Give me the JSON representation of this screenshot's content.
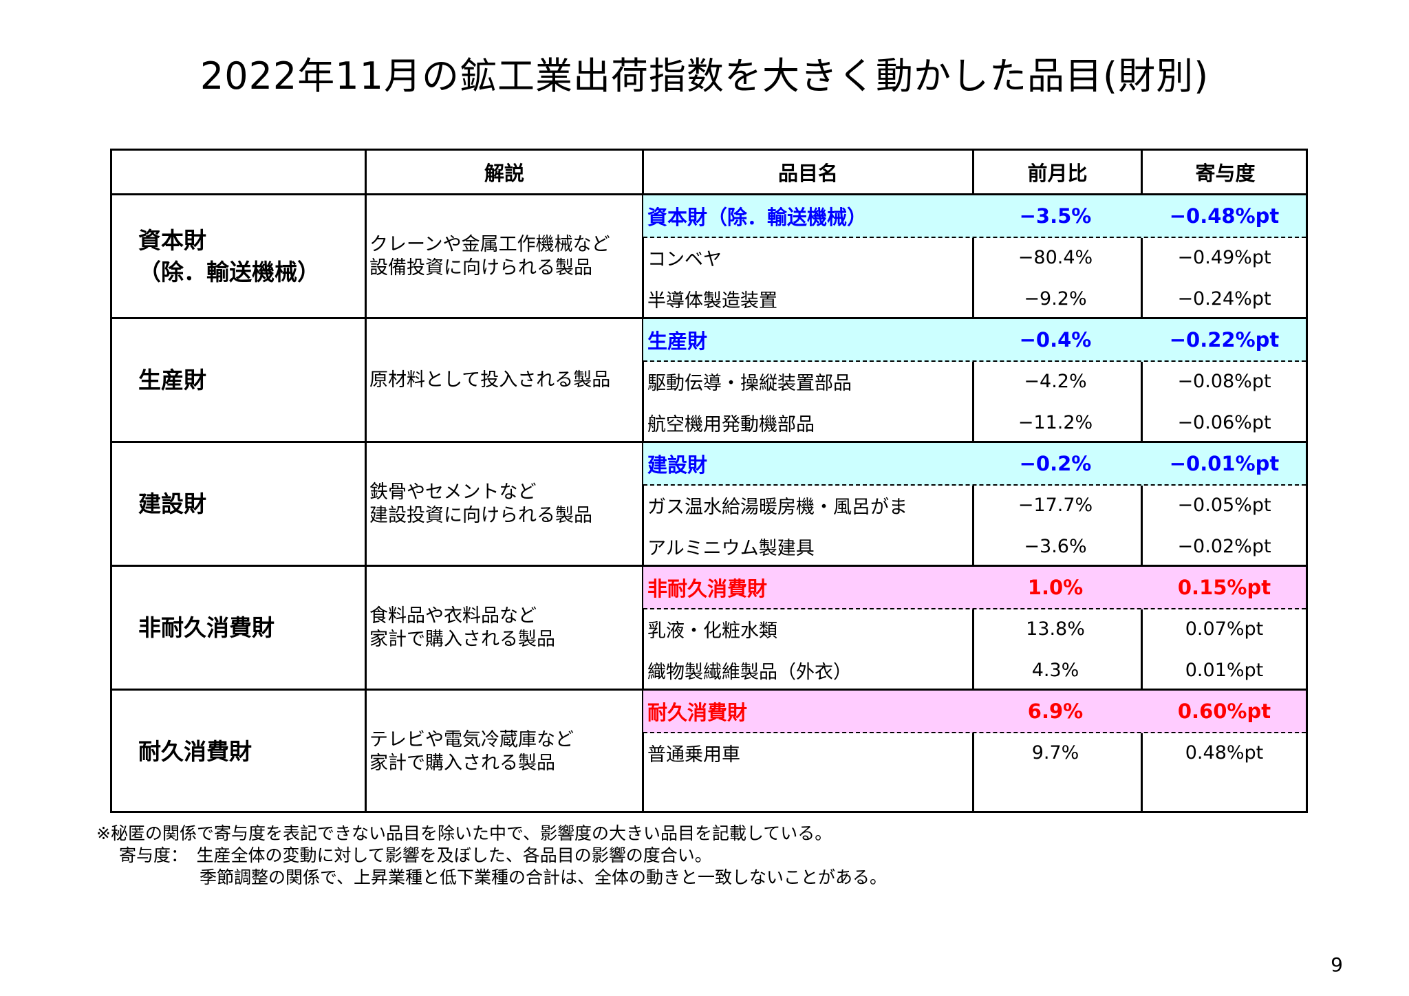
{
  "title": "2022年11月の鉱工業出荷指数を大きく動かした品目(財別)",
  "headers": {
    "desc": "解説",
    "item": "品目名",
    "mom": "前月比",
    "contrib": "寄与度"
  },
  "colors": {
    "blue_bg": "#ccffff",
    "blue_text": "#0000ff",
    "pink_bg": "#ffccff",
    "pink_text": "#ff0000"
  },
  "groups": [
    {
      "category": "資本財\n（除．輸送機械）",
      "description": "クレーンや金属工作機械など\n設備投資に向けられる製品",
      "summary": {
        "name": "資本財（除．輸送機械）",
        "mom": "−3.5%",
        "contrib": "−0.48%pt"
      },
      "items": [
        {
          "name": "コンベヤ",
          "mom": "−80.4%",
          "contrib": "−0.49%pt"
        },
        {
          "name": "半導体製造装置",
          "mom": "−9.2%",
          "contrib": "−0.24%pt"
        }
      ]
    },
    {
      "category": "生産財",
      "description": "原材料として投入される製品",
      "summary": {
        "name": "生産財",
        "mom": "−0.4%",
        "contrib": "−0.22%pt"
      },
      "items": [
        {
          "name": "駆動伝導・操縦装置部品",
          "mom": "−4.2%",
          "contrib": "−0.08%pt"
        },
        {
          "name": "航空機用発動機部品",
          "mom": "−11.2%",
          "contrib": "−0.06%pt"
        }
      ]
    },
    {
      "category": "建設財",
      "description": "鉄骨やセメントなど\n建設投資に向けられる製品",
      "summary": {
        "name": "建設財",
        "mom": "−0.2%",
        "contrib": "−0.01%pt"
      },
      "items": [
        {
          "name": "ガス温水給湯暖房機・風呂がま",
          "mom": "−17.7%",
          "contrib": "−0.05%pt"
        },
        {
          "name": "アルミニウム製建具",
          "mom": "−3.6%",
          "contrib": "−0.02%pt"
        }
      ]
    },
    {
      "category": "非耐久消費財",
      "description": "食料品や衣料品など\n家計で購入される製品",
      "summary": {
        "name": "非耐久消費財",
        "mom": "1.0%",
        "contrib": "0.15%pt"
      },
      "items": [
        {
          "name": "乳液・化粧水類",
          "mom": "13.8%",
          "contrib": "0.07%pt"
        },
        {
          "name": "織物製繊維製品（外衣）",
          "mom": "4.3%",
          "contrib": "0.01%pt"
        }
      ]
    },
    {
      "category": "耐久消費財",
      "description": "テレビや電気冷蔵庫など\n家計で購入される製品",
      "summary": {
        "name": "耐久消費財",
        "mom": "6.9%",
        "contrib": "0.60%pt"
      },
      "items": [
        {
          "name": "普通乗用車",
          "mom": "9.7%",
          "contrib": "0.48%pt"
        }
      ]
    }
  ],
  "notes": [
    "※秘匿の関係で寄与度を表記できない品目を除いた中で、影響度の大きい品目を記載している。",
    "　 寄与度：　生産全体の変動に対して影響を及ぼした、各品目の影響の度合い。",
    "　　　　　　季節調整の関係で、上昇業種と低下業種の合計は、全体の動きと一致しないことがある。"
  ],
  "page_number": "9"
}
